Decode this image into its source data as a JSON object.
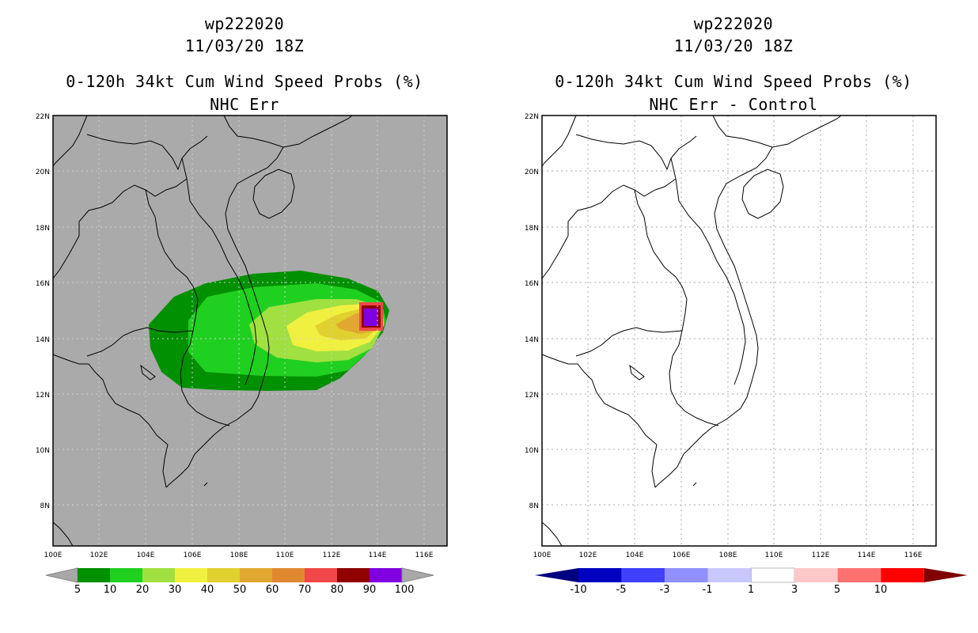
{
  "left": {
    "title1": "wp222020",
    "title2": "11/03/20 18Z",
    "title3": "0-120h 34kt Cum Wind Speed Probs (%)",
    "title4": "NHC Err",
    "background": "#aaaaaa",
    "lat_labels": [
      "22N",
      "20N",
      "18N",
      "16N",
      "14N",
      "12N",
      "10N",
      "8N"
    ],
    "lon_labels": [
      "100E",
      "102E",
      "104E",
      "106E",
      "108E",
      "110E",
      "112E",
      "114E",
      "116E"
    ],
    "colorbar": {
      "colors": [
        "#009000",
        "#20d020",
        "#a0e040",
        "#f0f040",
        "#e0d030",
        "#e0a830",
        "#e08830",
        "#f04848",
        "#900000",
        "#8000e0"
      ],
      "end_color": "#a8a8a8",
      "labels": [
        "5",
        "10",
        "20",
        "30",
        "40",
        "50",
        "60",
        "70",
        "80",
        "90",
        "100"
      ]
    }
  },
  "right": {
    "title1": "wp222020",
    "title2": "11/03/20 18Z",
    "title3": "0-120h 34kt Cum Wind Speed Probs (%)",
    "title4": "NHC Err - Control",
    "background": "#ffffff",
    "lat_labels": [
      "22N",
      "20N",
      "18N",
      "16N",
      "14N",
      "12N",
      "10N",
      "8N"
    ],
    "lon_labels": [
      "100E",
      "102E",
      "104E",
      "106E",
      "108E",
      "110E",
      "112E",
      "114E",
      "116E"
    ],
    "colorbar": {
      "colors": [
        "#0000c0",
        "#4040ff",
        "#9090ff",
        "#c8c8ff",
        "#ffffff",
        "#ffc8c8",
        "#ff7070",
        "#ff0000"
      ],
      "low_end": "#000080",
      "high_end": "#800000",
      "labels": [
        "-10",
        "-5",
        "-3",
        "-1",
        "1",
        "3",
        "5",
        "10"
      ]
    }
  }
}
